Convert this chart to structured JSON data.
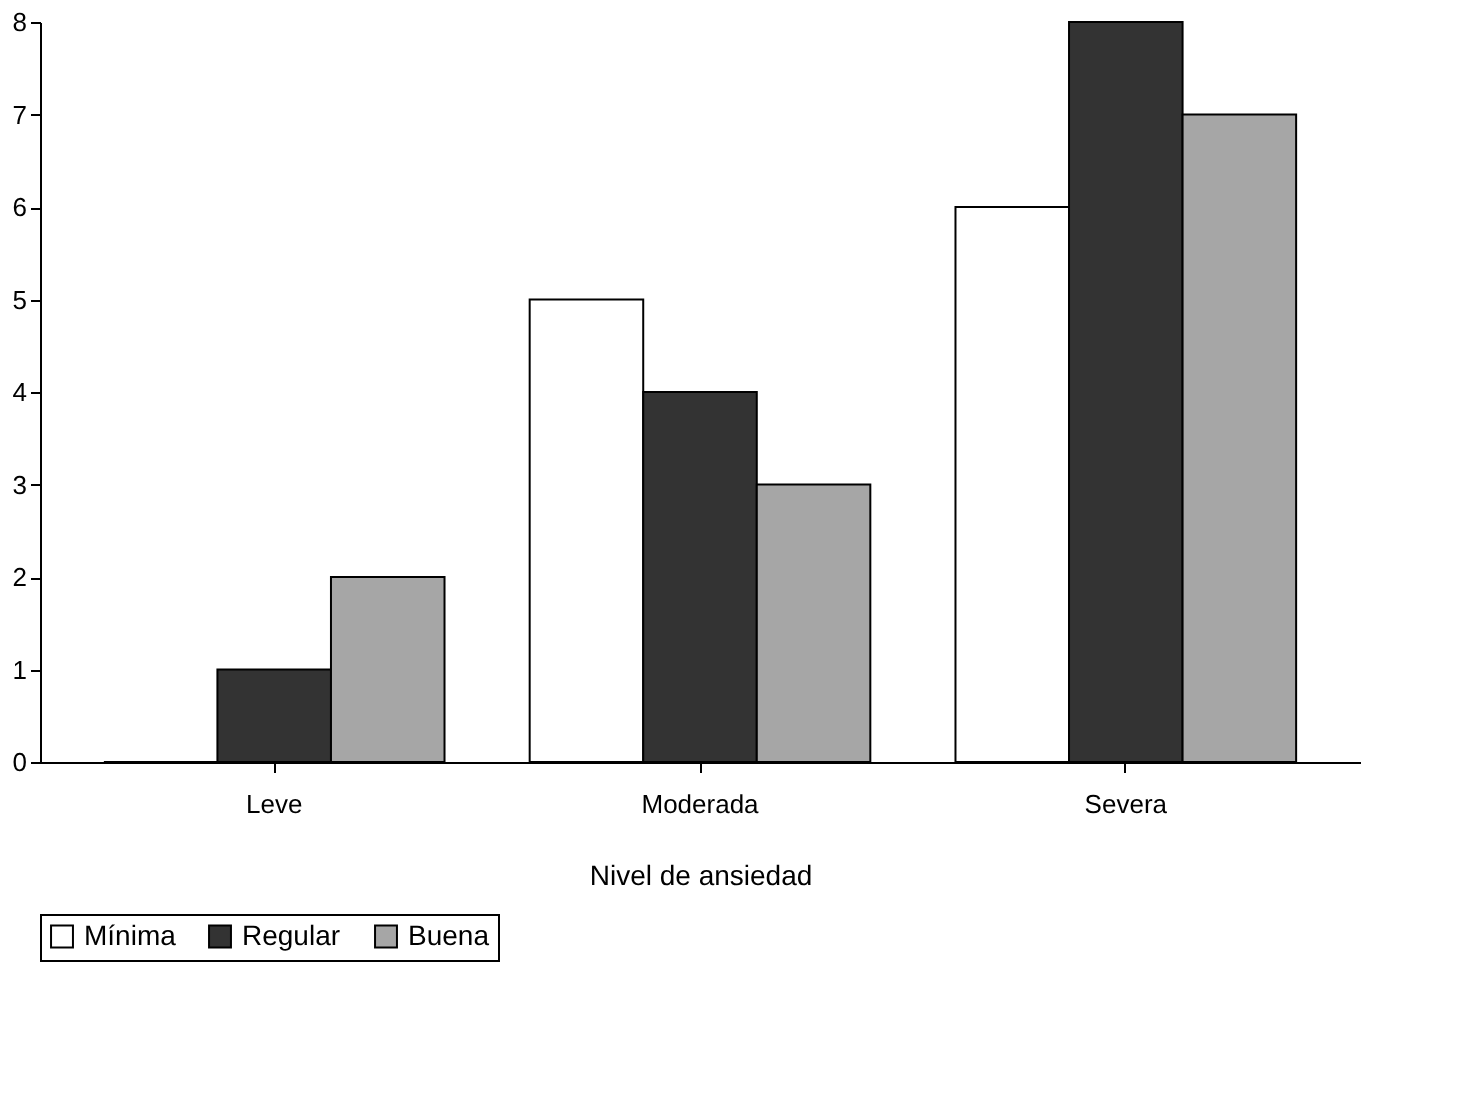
{
  "chart_data": {
    "type": "bar",
    "xlabel": "Nivel de ansiedad",
    "categories": [
      "Leve",
      "Moderada",
      "Severa"
    ],
    "series": [
      {
        "name": "Mínima",
        "color": "#ffffff",
        "values": [
          0,
          5,
          6
        ]
      },
      {
        "name": "Regular",
        "color": "#333333",
        "values": [
          1,
          4,
          8
        ]
      },
      {
        "name": "Buena",
        "color": "#a6a6a6",
        "values": [
          2,
          3,
          7
        ]
      }
    ],
    "ylim": [
      0,
      8
    ],
    "yticks": [
      0,
      1,
      2,
      3,
      4,
      5,
      6,
      7,
      8
    ],
    "grid": false,
    "legend": "bottom"
  }
}
